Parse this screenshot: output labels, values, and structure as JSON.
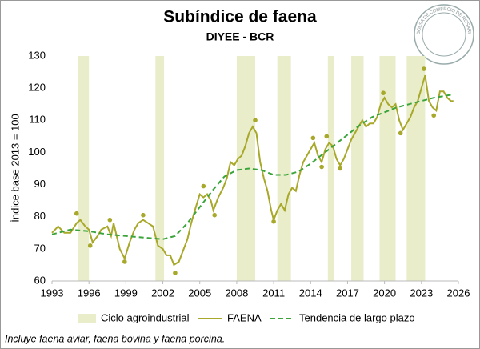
{
  "chart_data": {
    "type": "line",
    "title": "Subíndice de faena",
    "subtitle": "DIYEE - BCR",
    "ylabel": "Índice base 2013 = 100",
    "note": "Incluye faena aviar, faena bovina y faena porcina.",
    "logo_text": "BOLSA DE COMERCIO DE ROSARIO",
    "xlim": [
      1993,
      2026
    ],
    "xticks": [
      1993,
      1996,
      1999,
      2002,
      2005,
      2008,
      2011,
      2014,
      2017,
      2020,
      2023,
      2026
    ],
    "ylim": [
      60,
      130
    ],
    "yticks": [
      60,
      70,
      80,
      90,
      100,
      110,
      120,
      130
    ],
    "bands": {
      "name": "Ciclo agroindustrial",
      "color": "#e9edca",
      "ranges": [
        [
          1995.1,
          1996.0
        ],
        [
          2001.4,
          2002.1
        ],
        [
          2008.0,
          2009.5
        ],
        [
          2011.3,
          2012.4
        ],
        [
          2015.4,
          2015.9
        ],
        [
          2017.3,
          2018.3
        ],
        [
          2019.6,
          2020.9
        ],
        [
          2021.8,
          2023.3
        ]
      ]
    },
    "series": [
      {
        "name": "FAENA",
        "color": "#a8a82a",
        "x": [
          1993.0,
          1993.5,
          1994.0,
          1994.5,
          1995.0,
          1995.3,
          1995.7,
          1996.0,
          1996.3,
          1996.7,
          1997.0,
          1997.5,
          1997.8,
          1998.0,
          1998.5,
          1998.9,
          1999.3,
          1999.7,
          2000.0,
          2000.4,
          2000.8,
          2001.2,
          2001.6,
          2002.0,
          2002.3,
          2002.6,
          2002.9,
          2003.3,
          2003.7,
          2004.0,
          2004.3,
          2004.6,
          2005.0,
          2005.3,
          2005.6,
          2005.9,
          2006.1,
          2006.5,
          2006.9,
          2007.2,
          2007.5,
          2007.8,
          2008.1,
          2008.4,
          2008.7,
          2009.0,
          2009.3,
          2009.6,
          2009.9,
          2010.2,
          2010.5,
          2010.8,
          2011.0,
          2011.3,
          2011.6,
          2011.9,
          2012.2,
          2012.5,
          2012.8,
          2013.1,
          2013.4,
          2013.7,
          2014.0,
          2014.3,
          2014.6,
          2014.9,
          2015.2,
          2015.5,
          2015.8,
          2016.1,
          2016.4,
          2016.7,
          2017.0,
          2017.3,
          2017.6,
          2017.9,
          2018.2,
          2018.5,
          2018.8,
          2019.1,
          2019.4,
          2019.7,
          2020.0,
          2020.3,
          2020.6,
          2020.9,
          2021.2,
          2021.5,
          2021.8,
          2022.1,
          2022.4,
          2022.7,
          2023.0,
          2023.3,
          2023.6,
          2023.9,
          2024.2,
          2024.5,
          2024.8,
          2025.1,
          2025.4,
          2025.6
        ],
        "values": [
          75,
          77,
          75,
          75,
          78,
          79,
          77,
          76,
          72,
          74,
          76,
          77,
          74,
          78,
          70,
          67,
          72,
          76,
          78,
          79,
          78,
          77,
          71,
          70,
          68,
          68,
          65,
          66,
          70,
          73,
          78,
          82,
          87,
          86,
          87,
          85,
          82,
          86,
          89,
          92,
          97,
          96,
          98,
          99,
          102,
          106,
          108,
          106,
          97,
          92,
          88,
          82,
          79,
          82,
          84,
          82,
          87,
          89,
          88,
          93,
          97,
          99,
          101,
          103,
          99,
          97,
          101,
          103,
          102,
          98,
          96,
          98,
          101,
          104,
          106,
          108,
          110,
          108,
          109,
          109,
          111,
          115,
          117,
          115,
          114,
          115,
          110,
          107,
          109,
          111,
          114,
          116,
          120,
          124,
          116,
          114,
          113,
          119,
          119,
          117,
          116,
          116
        ]
      },
      {
        "name": "Tendencia de largo plazo",
        "color": "#3aa43a",
        "dashed": true,
        "x": [
          1993,
          1994.5,
          1996,
          1997.5,
          1999,
          2000.5,
          2002,
          2003,
          2004,
          2005,
          2006,
          2007,
          2008,
          2009,
          2010,
          2011,
          2012,
          2013,
          2014,
          2015,
          2016,
          2017,
          2018,
          2019,
          2020,
          2021,
          2022,
          2023,
          2024,
          2025.5
        ],
        "values": [
          74.5,
          76,
          75.5,
          74.5,
          74,
          73.5,
          73,
          74,
          78,
          83,
          88,
          92.5,
          94.5,
          95,
          94.5,
          93,
          93,
          94,
          96.5,
          99.5,
          102.5,
          105.5,
          108.5,
          111,
          112.5,
          114,
          115,
          116,
          117,
          118
        ]
      }
    ],
    "points": {
      "color": "#a8a82a",
      "x": [
        1995.0,
        1996.1,
        1997.7,
        1998.9,
        2000.4,
        2003.0,
        2005.3,
        2006.2,
        2009.5,
        2011.0,
        2014.2,
        2014.9,
        2015.3,
        2016.4,
        2019.9,
        2021.3,
        2023.2,
        2024.0
      ],
      "values": [
        81,
        71,
        79,
        66,
        80.5,
        62.5,
        89.5,
        80.5,
        110,
        78.5,
        104.5,
        95.5,
        105,
        95,
        118.5,
        106,
        126,
        111.5
      ]
    }
  }
}
